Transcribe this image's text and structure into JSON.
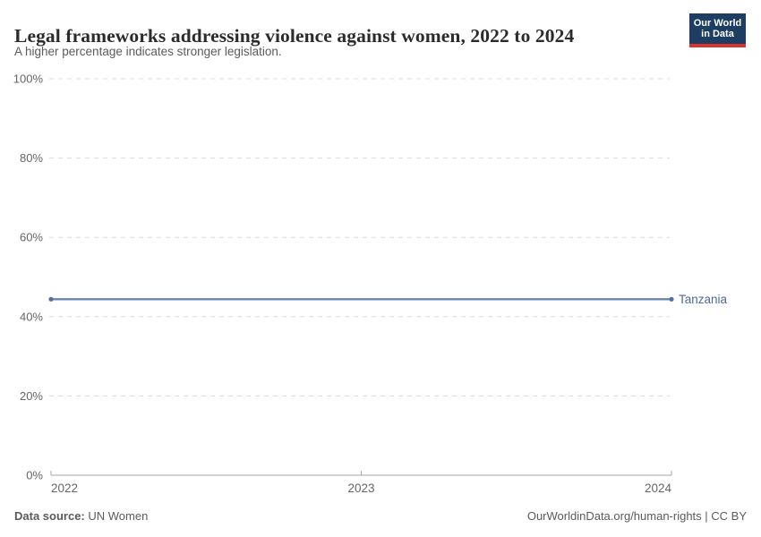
{
  "header": {
    "title": "Legal frameworks addressing violence against women, 2022 to 2024",
    "subtitle": "A higher percentage indicates stronger legislation.",
    "logo": {
      "line1": "Our World",
      "line2": "in Data",
      "bg_color": "#1d3d63",
      "accent_color": "#d8352f"
    }
  },
  "chart_data": {
    "type": "line",
    "title": "Legal frameworks addressing violence against women, 2022 to 2024",
    "x": [
      2022,
      2023,
      2024
    ],
    "series": [
      {
        "name": "Tanzania",
        "values": [
          44.4,
          44.4,
          44.4
        ],
        "color": "#6c84ae",
        "marker_color": "#54709f",
        "label_color": "#4d689e"
      }
    ],
    "ylim": [
      0,
      100
    ],
    "yticks": [
      0,
      20,
      40,
      60,
      80,
      100
    ],
    "ytick_labels": [
      "0%",
      "20%",
      "40%",
      "60%",
      "80%",
      "100%"
    ],
    "xticks": [
      2022,
      2023,
      2024
    ],
    "xtick_labels": [
      "2022",
      "2023",
      "2024"
    ],
    "grid": true,
    "gridline_color": "#dcdcdc",
    "axis_color": "#a6a6a6",
    "tick_label_color": "#666666",
    "legend_position": "end-of-line-label"
  },
  "footer": {
    "source_label": "Data source:",
    "source_value": " UN Women",
    "right_text": "OurWorldinData.org/human-rights | CC BY"
  }
}
